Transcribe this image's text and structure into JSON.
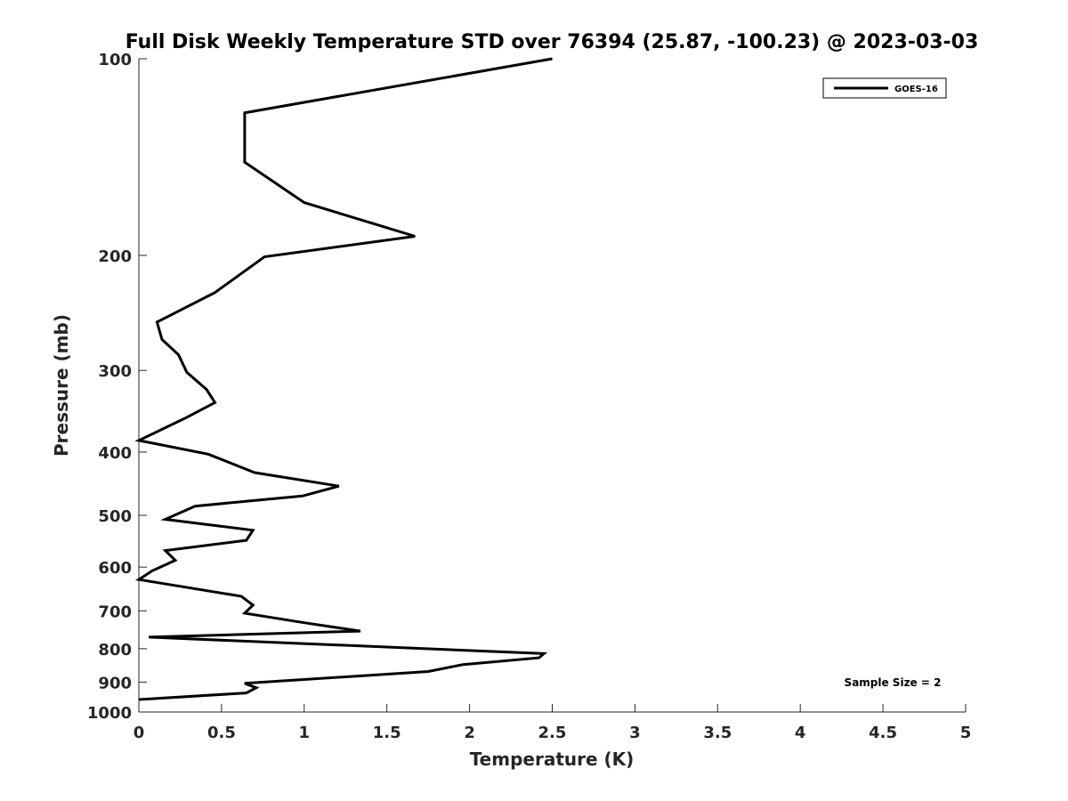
{
  "chart_data": {
    "type": "line",
    "title": "Full Disk Weekly Temperature STD over 76394 (25.87, -100.23) @ 2023-03-03",
    "xlabel": "Temperature (K)",
    "ylabel": "Pressure (mb)",
    "xlim": [
      0,
      5
    ],
    "ylim": [
      100,
      1000
    ],
    "y_scale": "log",
    "y_reversed": true,
    "x_ticks": [
      0,
      0.5,
      1,
      1.5,
      2,
      2.5,
      3,
      3.5,
      4,
      4.5,
      5
    ],
    "x_tick_labels": [
      "0",
      "0.5",
      "1",
      "1.5",
      "2",
      "2.5",
      "3",
      "3.5",
      "4",
      "4.5",
      "5"
    ],
    "y_ticks": [
      100,
      200,
      300,
      400,
      500,
      600,
      700,
      800,
      900,
      1000
    ],
    "y_tick_labels": [
      "100",
      "200",
      "300",
      "400",
      "500",
      "600",
      "700",
      "800",
      "900",
      "1000"
    ],
    "grid": false,
    "legend_position": "top-right",
    "annotation": "Sample Size = 2",
    "series": [
      {
        "name": "GOES-16",
        "color": "#000000",
        "x": [
          2.5,
          0.64,
          0.64,
          1.0,
          1.67,
          0.76,
          0.46,
          0.11,
          0.14,
          0.24,
          0.29,
          0.41,
          0.46,
          0.28,
          0.0,
          0.42,
          0.7,
          1.21,
          0.99,
          0.34,
          0.16,
          0.69,
          0.65,
          0.16,
          0.22,
          0.08,
          0.0,
          0.62,
          0.69,
          0.64,
          1.0,
          1.34,
          0.06,
          2.45,
          2.42,
          1.96,
          1.75,
          0.64,
          0.71,
          0.65,
          0.0
        ],
        "y": [
          100,
          121,
          144,
          166,
          187,
          201,
          228,
          253,
          269,
          284,
          302,
          321,
          336,
          355,
          384,
          403,
          430,
          451,
          467,
          484,
          507,
          527,
          546,
          566,
          586,
          608,
          627,
          665,
          686,
          706,
          730,
          752,
          768,
          814,
          826,
          846,
          867,
          904,
          918,
          935,
          957
        ]
      }
    ]
  }
}
